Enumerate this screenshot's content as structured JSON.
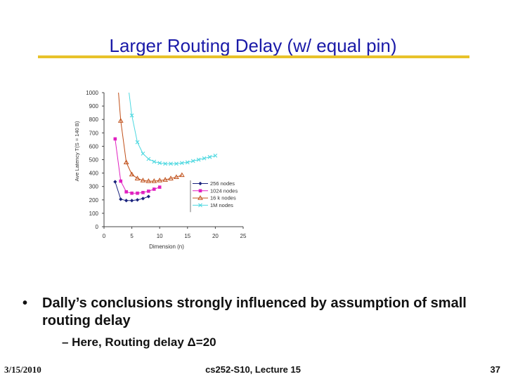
{
  "slide": {
    "title": "Larger Routing Delay (w/ equal pin)",
    "bullet": "Dally’s conclusions strongly influenced by assumption of small routing delay",
    "sub_bullet_prefix": "– Here, Routing delay ",
    "sub_bullet_symbol": "Δ",
    "sub_bullet_suffix": "=20"
  },
  "footer": {
    "date": "3/15/2010",
    "course": "cs252-S10, Lecture 15",
    "page": "37"
  },
  "chart_data": {
    "type": "line",
    "xlabel": "Dimension (n)",
    "ylabel": "Ave Latency T(S = 140 B)",
    "xlim": [
      0,
      25
    ],
    "ylim": [
      0,
      1000
    ],
    "xticks": [
      0,
      5,
      10,
      15,
      20,
      25
    ],
    "yticks": [
      0,
      100,
      200,
      300,
      400,
      500,
      600,
      700,
      800,
      900,
      1000
    ],
    "grid": false,
    "legend_position": "bottom-right",
    "series": [
      {
        "name": "256 nodes",
        "color": "#1a237e",
        "marker": "diamond",
        "x": [
          2,
          3,
          4,
          5,
          6,
          7,
          8
        ],
        "y": [
          335,
          205,
          195,
          195,
          200,
          210,
          225
        ]
      },
      {
        "name": "1024 nodes",
        "color": "#e020c0",
        "marker": "square",
        "x": [
          2,
          3,
          4,
          5,
          6,
          7,
          8,
          9,
          10
        ],
        "y": [
          655,
          340,
          260,
          250,
          250,
          255,
          265,
          280,
          295
        ]
      },
      {
        "name": "16 k nodes",
        "color": "#c0501a",
        "marker": "triangle",
        "x": [
          2.6,
          3,
          4,
          5,
          6,
          7,
          8,
          9,
          10,
          11,
          12,
          13,
          14
        ],
        "y": [
          1000,
          790,
          480,
          390,
          360,
          345,
          340,
          340,
          345,
          350,
          360,
          370,
          385
        ]
      },
      {
        "name": "1M nodes",
        "color": "#4dd8e0",
        "marker": "x",
        "x": [
          4.5,
          5,
          6,
          7,
          8,
          9,
          10,
          11,
          12,
          13,
          14,
          15,
          16,
          17,
          18,
          19,
          20
        ],
        "y": [
          1000,
          830,
          630,
          545,
          505,
          485,
          475,
          470,
          470,
          470,
          475,
          480,
          490,
          500,
          510,
          520,
          530
        ]
      }
    ]
  }
}
